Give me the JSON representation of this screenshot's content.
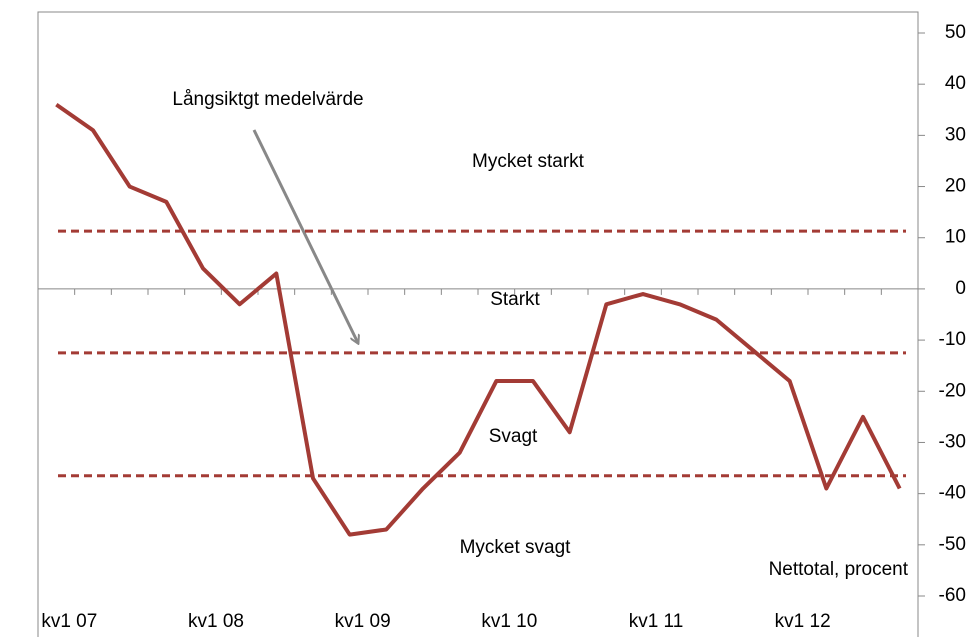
{
  "chart_data": {
    "type": "line",
    "categories": [
      "kv1 07",
      null,
      null,
      null,
      "kv1 08",
      null,
      null,
      null,
      "kv1 09",
      null,
      null,
      null,
      "kv1 10",
      null,
      null,
      null,
      "kv1 11",
      null,
      null,
      null,
      "kv1 12",
      null,
      null,
      null
    ],
    "values": [
      36,
      31,
      20,
      17,
      4,
      -3,
      3,
      -37,
      -48,
      -47,
      -39,
      -32,
      -18,
      -18,
      -28,
      -3,
      -1,
      -3,
      -6,
      -12,
      -18,
      -39,
      -25,
      -39
    ],
    "color": "#a33b35",
    "reference_lines": [
      11.3,
      -12.5,
      -36.5
    ],
    "reference_color": "#a33b35",
    "ylim": [
      -60,
      50
    ],
    "yticks": [
      50,
      40,
      30,
      20,
      10,
      0,
      -10,
      -20,
      -30,
      -40,
      -50,
      -60
    ],
    "annotations": [
      "Mycket starkt",
      "Starkt",
      "Svagt",
      "Mycket svagt",
      "Långsiktgt medelvärde"
    ],
    "y_axis_label": "Nettotal, procent"
  }
}
